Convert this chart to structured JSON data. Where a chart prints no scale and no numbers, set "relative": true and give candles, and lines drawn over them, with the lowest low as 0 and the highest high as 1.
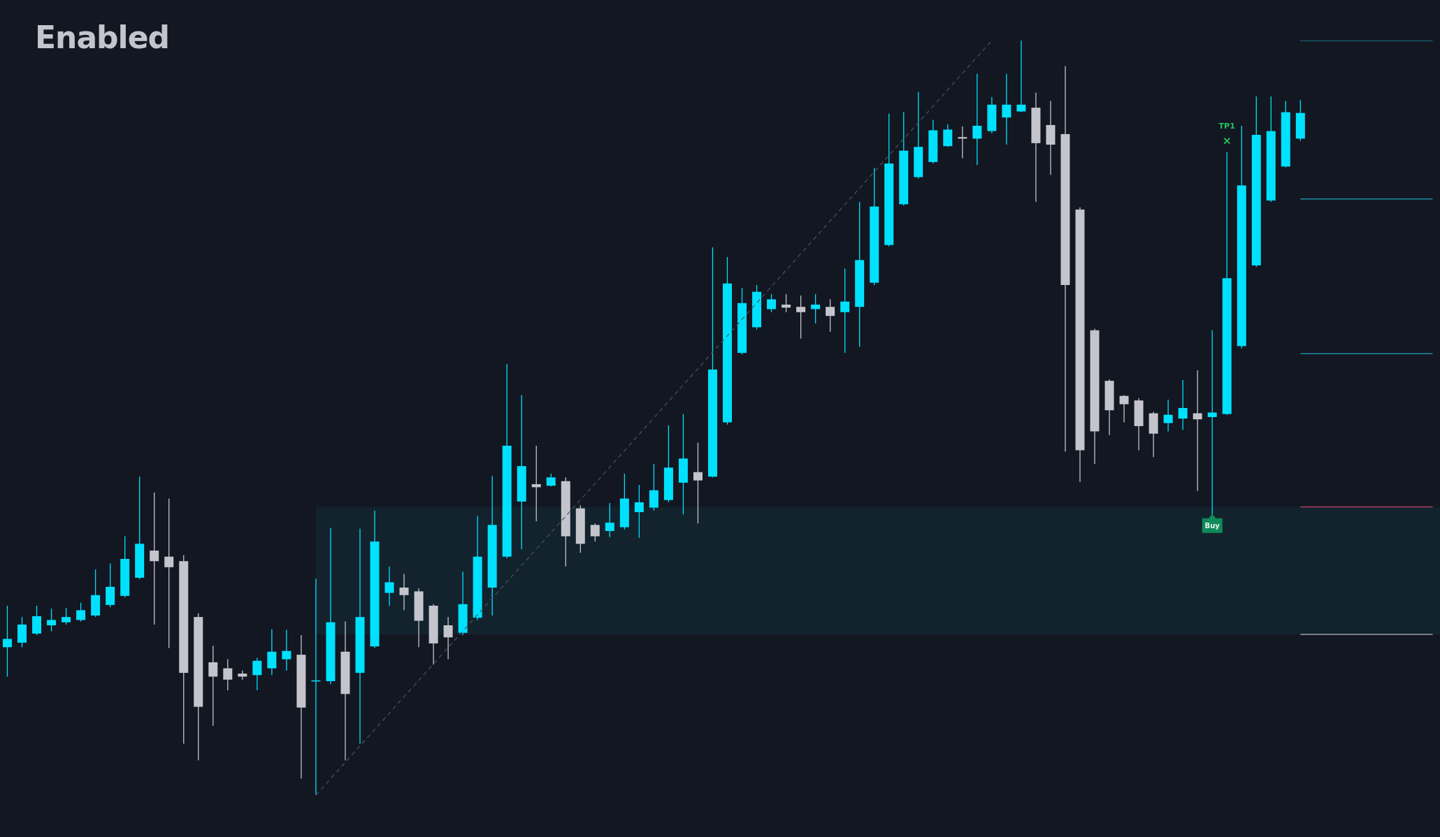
{
  "chart_data": {
    "type": "candlestick",
    "title": "Enabled",
    "relative": true,
    "categories": [
      null,
      null,
      null,
      null,
      null,
      null,
      null,
      null,
      null,
      null,
      null,
      null,
      null,
      null,
      null,
      null,
      null,
      null,
      null,
      null,
      null,
      null,
      null,
      null,
      null,
      null,
      null,
      null,
      null,
      null,
      null,
      null,
      null,
      null,
      null,
      null,
      null,
      null,
      null,
      null,
      null,
      null,
      null,
      null,
      null,
      null,
      null,
      null,
      null,
      null,
      null,
      null,
      null,
      null,
      null,
      null,
      null,
      null,
      null,
      null,
      null,
      null,
      null,
      null,
      null,
      null,
      null,
      null,
      null,
      null,
      null,
      null,
      null,
      null,
      null,
      null,
      null,
      null,
      null,
      null,
      null,
      null,
      null,
      null,
      null,
      null,
      null,
      null,
      null,
      null,
      null,
      null,
      null,
      null,
      null,
      null,
      null,
      null
    ],
    "ohlc": [
      [
        0.196,
        0.251,
        0.157,
        0.207
      ],
      [
        0.202,
        0.236,
        0.196,
        0.226
      ],
      [
        0.214,
        0.251,
        0.212,
        0.237
      ],
      [
        0.225,
        0.247,
        0.217,
        0.232
      ],
      [
        0.229,
        0.248,
        0.226,
        0.236
      ],
      [
        0.232,
        0.255,
        0.23,
        0.245
      ],
      [
        0.238,
        0.299,
        0.236,
        0.265
      ],
      [
        0.252,
        0.307,
        0.249,
        0.276
      ],
      [
        0.264,
        0.343,
        0.262,
        0.313
      ],
      [
        0.288,
        0.422,
        0.286,
        0.333
      ],
      [
        0.324,
        0.401,
        0.226,
        0.31
      ],
      [
        0.316,
        0.393,
        0.195,
        0.302
      ],
      [
        0.31,
        0.318,
        0.068,
        0.162
      ],
      [
        0.236,
        0.241,
        0.046,
        0.117
      ],
      [
        0.176,
        0.198,
        0.092,
        0.157
      ],
      [
        0.168,
        0.18,
        0.139,
        0.153
      ],
      [
        0.161,
        0.165,
        0.153,
        0.157
      ],
      [
        0.159,
        0.182,
        0.139,
        0.178
      ],
      [
        0.168,
        0.22,
        0.159,
        0.19
      ],
      [
        0.18,
        0.219,
        0.165,
        0.191
      ],
      [
        0.186,
        0.212,
        0.022,
        0.116
      ],
      [
        0.151,
        0.287,
        0,
        0.152
      ],
      [
        0.151,
        0.354,
        0.147,
        0.229
      ],
      [
        0.19,
        0.23,
        0.046,
        0.134
      ],
      [
        0.162,
        0.353,
        0.068,
        0.236
      ],
      [
        0.197,
        0.377,
        0.195,
        0.336
      ],
      [
        0.268,
        0.303,
        0.251,
        0.282
      ],
      [
        0.275,
        0.293,
        0.245,
        0.265
      ],
      [
        0.27,
        0.274,
        0.196,
        0.231
      ],
      [
        0.251,
        0.253,
        0.173,
        0.201
      ],
      [
        0.225,
        0.236,
        0.18,
        0.209
      ],
      [
        0.215,
        0.296,
        0.212,
        0.253
      ],
      [
        0.235,
        0.37,
        0.232,
        0.316
      ],
      [
        0.275,
        0.423,
        0.238,
        0.358
      ],
      [
        0.316,
        0.571,
        0.314,
        0.463
      ],
      [
        0.389,
        0.53,
        0.326,
        0.436
      ],
      [
        0.412,
        0.463,
        0.363,
        0.408
      ],
      [
        0.41,
        0.426,
        0.409,
        0.421
      ],
      [
        0.416,
        0.421,
        0.303,
        0.343
      ],
      [
        0.38,
        0.384,
        0.321,
        0.333
      ],
      [
        0.358,
        0.36,
        0.336,
        0.343
      ],
      [
        0.35,
        0.387,
        0.342,
        0.361
      ],
      [
        0.355,
        0.426,
        0.352,
        0.393
      ],
      [
        0.375,
        0.411,
        0.341,
        0.388
      ],
      [
        0.381,
        0.439,
        0.377,
        0.404
      ],
      [
        0.391,
        0.49,
        0.388,
        0.434
      ],
      [
        0.414,
        0.505,
        0.372,
        0.446
      ],
      [
        0.428,
        0.467,
        0.36,
        0.417
      ],
      [
        0.422,
        0.726,
        0.421,
        0.564
      ],
      [
        0.494,
        0.713,
        0.491,
        0.678
      ],
      [
        0.586,
        0.672,
        0.584,
        0.652
      ],
      [
        0.62,
        0.676,
        0.617,
        0.667
      ],
      [
        0.644,
        0.664,
        0.64,
        0.657
      ],
      [
        0.65,
        0.664,
        0.64,
        0.646
      ],
      [
        0.647,
        0.662,
        0.605,
        0.64
      ],
      [
        0.644,
        0.664,
        0.625,
        0.65
      ],
      [
        0.647,
        0.657,
        0.614,
        0.635
      ],
      [
        0.64,
        0.698,
        0.586,
        0.654
      ],
      [
        0.647,
        0.786,
        0.594,
        0.709
      ],
      [
        0.679,
        0.831,
        0.676,
        0.78
      ],
      [
        0.729,
        0.903,
        0.727,
        0.837
      ],
      [
        0.783,
        0.905,
        0.781,
        0.854
      ],
      [
        0.819,
        0.932,
        0.817,
        0.859
      ],
      [
        0.839,
        0.895,
        0.837,
        0.881
      ],
      [
        0.86,
        0.889,
        0.859,
        0.882
      ],
      [
        0.872,
        0.886,
        0.844,
        0.87
      ],
      [
        0.87,
        0.956,
        0.835,
        0.887
      ],
      [
        0.88,
        0.925,
        0.877,
        0.915
      ],
      [
        0.898,
        0.956,
        0.862,
        0.915
      ],
      [
        0.906,
        1,
        0.905,
        0.915
      ],
      [
        0.911,
        0.931,
        0.786,
        0.864
      ],
      [
        0.888,
        0.92,
        0.822,
        0.862
      ],
      [
        0.876,
        0.966,
        0.455,
        0.676
      ],
      [
        0.776,
        0.779,
        0.415,
        0.457
      ],
      [
        0.616,
        0.618,
        0.439,
        0.482
      ],
      [
        0.549,
        0.551,
        0.477,
        0.51
      ],
      [
        0.529,
        0.53,
        0.494,
        0.518
      ],
      [
        0.523,
        0.526,
        0.457,
        0.489
      ],
      [
        0.506,
        0.508,
        0.448,
        0.479
      ],
      [
        0.493,
        0.524,
        0.482,
        0.504
      ],
      [
        0.499,
        0.55,
        0.484,
        0.513
      ],
      [
        0.506,
        0.563,
        0.403,
        0.498
      ],
      [
        0.501,
        0.616,
        0.372,
        0.507
      ],
      [
        0.505,
        0.852,
        0.504,
        0.685
      ],
      [
        0.595,
        0.887,
        0.592,
        0.808
      ],
      [
        0.702,
        0.926,
        0.7,
        0.875
      ],
      [
        0.788,
        0.926,
        0.786,
        0.88
      ],
      [
        0.833,
        0.92,
        0.832,
        0.905
      ],
      [
        0.87,
        0.921,
        0.867,
        0.904
      ],
      null,
      null,
      null,
      null,
      null,
      null,
      null,
      null,
      null
    ],
    "colors": [
      "#00e1ff",
      "#00e1ff",
      "#00e1ff",
      "#00e1ff",
      "#00e1ff",
      "#00e1ff",
      "#00e1ff",
      "#00e1ff",
      "#00e1ff",
      "#00e1ff",
      "#c4c5cc",
      "#c4c5cc",
      "#c4c5cc",
      "#c4c5cc",
      "#c4c5cc",
      "#c4c5cc",
      "#c4c5cc",
      "#00e1ff",
      "#00e1ff",
      "#00e1ff",
      "#c4c5cc",
      "#00e1ff",
      "#00e1ff",
      "#c4c5cc",
      "#00e1ff",
      "#00e1ff",
      "#00e1ff",
      "#c4c5cc",
      "#c4c5cc",
      "#c4c5cc",
      "#c4c5cc",
      "#00e1ff",
      "#00e1ff",
      "#00e1ff",
      "#00e1ff",
      "#00e1ff",
      "#c4c5cc",
      "#00e1ff",
      "#c4c5cc",
      "#c4c5cc",
      "#c4c5cc",
      "#00e1ff",
      "#00e1ff",
      "#00e1ff",
      "#00e1ff",
      "#00e1ff",
      "#00e1ff",
      "#c4c5cc",
      "#00e1ff",
      "#00e1ff",
      "#00e1ff",
      "#00e1ff",
      "#00e1ff",
      "#c4c5cc",
      "#c4c5cc",
      "#00e1ff",
      "#c4c5cc",
      "#00e1ff",
      "#00e1ff",
      "#00e1ff",
      "#00e1ff",
      "#00e1ff",
      "#00e1ff",
      "#00e1ff",
      "#00e1ff",
      "#c4c5cc",
      "#00e1ff",
      "#00e1ff",
      "#00e1ff",
      "#00e1ff",
      "#c4c5cc",
      "#c4c5cc",
      "#c4c5cc",
      "#c4c5cc",
      "#c4c5cc",
      "#c4c5cc",
      "#c4c5cc",
      "#c4c5cc",
      "#c4c5cc",
      "#00e1ff",
      "#00e1ff",
      "#c4c5cc",
      "#00e1ff",
      "#00e1ff",
      "#00e1ff",
      "#00e1ff",
      "#00e1ff",
      "#00e1ff",
      "#00e1ff",
      null,
      null,
      null,
      null,
      null,
      null,
      null,
      null,
      null
    ],
    "series": [
      {
        "type": "line",
        "color": "#4a5360",
        "line_style": "dashed",
        "values": [
          null,
          null,
          null,
          null,
          null,
          null,
          null,
          null,
          null,
          null,
          null,
          null,
          null,
          null,
          null,
          null,
          null,
          null,
          null,
          null,
          null,
          0,
          null,
          null,
          null,
          null,
          null,
          null,
          null,
          null,
          null,
          null,
          null,
          null,
          null,
          null,
          null,
          null,
          null,
          null,
          null,
          null,
          null,
          null,
          null,
          null,
          null,
          null,
          null,
          null,
          null,
          null,
          null,
          null,
          null,
          null,
          null,
          null,
          null,
          null,
          null,
          null,
          null,
          null,
          null,
          null,
          null,
          1,
          null,
          null,
          null,
          null,
          null,
          null,
          null,
          null,
          null,
          null,
          null,
          null,
          null,
          null,
          null,
          null,
          null,
          null,
          null,
          null,
          null,
          null,
          null,
          null,
          null,
          null,
          null,
          null,
          null,
          null
        ]
      },
      {
        "type": "line",
        "color": "#1b8ea3",
        "values": [
          null,
          null,
          null,
          null,
          null,
          null,
          null,
          null,
          null,
          null,
          null,
          null,
          null,
          null,
          null,
          null,
          null,
          null,
          null,
          null,
          null,
          null,
          null,
          null,
          null,
          null,
          null,
          null,
          null,
          null,
          null,
          null,
          null,
          null,
          null,
          null,
          null,
          null,
          null,
          null,
          null,
          null,
          null,
          null,
          null,
          null,
          null,
          null,
          null,
          null,
          null,
          null,
          null,
          null,
          null,
          null,
          null,
          null,
          null,
          null,
          null,
          null,
          null,
          null,
          null,
          null,
          null,
          null,
          null,
          null,
          null,
          null,
          null,
          null,
          null,
          null,
          null,
          null,
          null,
          null,
          null,
          null,
          null,
          null,
          null,
          null,
          null,
          null,
          1,
          1,
          1,
          1,
          1,
          1,
          1,
          1,
          1,
          1
        ]
      },
      {
        "type": "line",
        "color": "#1b8ea3",
        "values": [
          null,
          null,
          null,
          null,
          null,
          null,
          null,
          null,
          null,
          null,
          null,
          null,
          null,
          null,
          null,
          null,
          null,
          null,
          null,
          null,
          null,
          null,
          null,
          null,
          null,
          null,
          null,
          null,
          null,
          null,
          null,
          null,
          null,
          null,
          null,
          null,
          null,
          null,
          null,
          null,
          null,
          null,
          null,
          null,
          null,
          null,
          null,
          null,
          null,
          null,
          null,
          null,
          null,
          null,
          null,
          null,
          null,
          null,
          null,
          null,
          null,
          null,
          null,
          null,
          null,
          null,
          null,
          null,
          null,
          null,
          null,
          null,
          null,
          null,
          null,
          null,
          null,
          null,
          null,
          null,
          null,
          null,
          null,
          null,
          null,
          null,
          null,
          null,
          0.79,
          0.79,
          0.79,
          0.79,
          0.79,
          0.79,
          0.79,
          0.79,
          0.79,
          0.79
        ]
      },
      {
        "type": "line",
        "color": "#1b8ea3",
        "values": [
          null,
          null,
          null,
          null,
          null,
          null,
          null,
          null,
          null,
          null,
          null,
          null,
          null,
          null,
          null,
          null,
          null,
          null,
          null,
          null,
          null,
          null,
          null,
          null,
          null,
          null,
          null,
          null,
          null,
          null,
          null,
          null,
          null,
          null,
          null,
          null,
          null,
          null,
          null,
          null,
          null,
          null,
          null,
          null,
          null,
          null,
          null,
          null,
          null,
          null,
          null,
          null,
          null,
          null,
          null,
          null,
          null,
          null,
          null,
          null,
          null,
          null,
          null,
          null,
          null,
          null,
          null,
          null,
          null,
          null,
          null,
          null,
          null,
          null,
          null,
          null,
          null,
          null,
          null,
          null,
          null,
          null,
          null,
          null,
          null,
          null,
          null,
          null,
          0.585,
          0.585,
          0.585,
          0.585,
          0.585,
          0.585,
          0.585,
          0.585,
          0.585,
          0.585
        ]
      },
      {
        "type": "line",
        "color": "#b33d6c",
        "values": [
          null,
          null,
          null,
          null,
          null,
          null,
          null,
          null,
          null,
          null,
          null,
          null,
          null,
          null,
          null,
          null,
          null,
          null,
          null,
          null,
          null,
          null,
          null,
          null,
          null,
          null,
          null,
          null,
          null,
          null,
          null,
          null,
          null,
          null,
          null,
          null,
          null,
          null,
          null,
          null,
          null,
          null,
          null,
          null,
          null,
          null,
          null,
          null,
          null,
          null,
          null,
          null,
          null,
          null,
          null,
          null,
          null,
          null,
          null,
          null,
          null,
          null,
          null,
          null,
          null,
          null,
          null,
          null,
          null,
          null,
          null,
          null,
          null,
          null,
          null,
          null,
          null,
          null,
          null,
          null,
          null,
          null,
          null,
          null,
          null,
          null,
          null,
          null,
          0.382,
          0.382,
          0.382,
          0.382,
          0.382,
          0.382,
          0.382,
          0.382,
          0.382,
          0.382
        ]
      },
      {
        "type": "line",
        "color": "#9aa0a8",
        "values": [
          null,
          null,
          null,
          null,
          null,
          null,
          null,
          null,
          null,
          null,
          null,
          null,
          null,
          null,
          null,
          null,
          null,
          null,
          null,
          null,
          null,
          null,
          null,
          null,
          null,
          null,
          null,
          null,
          null,
          null,
          null,
          null,
          null,
          null,
          null,
          null,
          null,
          null,
          null,
          null,
          null,
          null,
          null,
          null,
          null,
          null,
          null,
          null,
          null,
          null,
          null,
          null,
          null,
          null,
          null,
          null,
          null,
          null,
          null,
          null,
          null,
          null,
          null,
          null,
          null,
          null,
          null,
          null,
          null,
          null,
          null,
          null,
          null,
          null,
          null,
          null,
          null,
          null,
          null,
          null,
          null,
          null,
          null,
          null,
          null,
          null,
          null,
          null,
          0.213,
          0.213,
          0.213,
          0.213,
          0.213,
          0.213,
          0.213,
          0.213,
          0.213,
          0.213
        ]
      }
    ],
    "bands": [
      {
        "axis": "y",
        "from": 0.213,
        "to": 0.382,
        "color": "#12232e"
      }
    ],
    "annotations": [
      {
        "text": "TP1",
        "y": 0.867
      },
      {
        "text": "Buy",
        "y": 0.372
      }
    ]
  }
}
